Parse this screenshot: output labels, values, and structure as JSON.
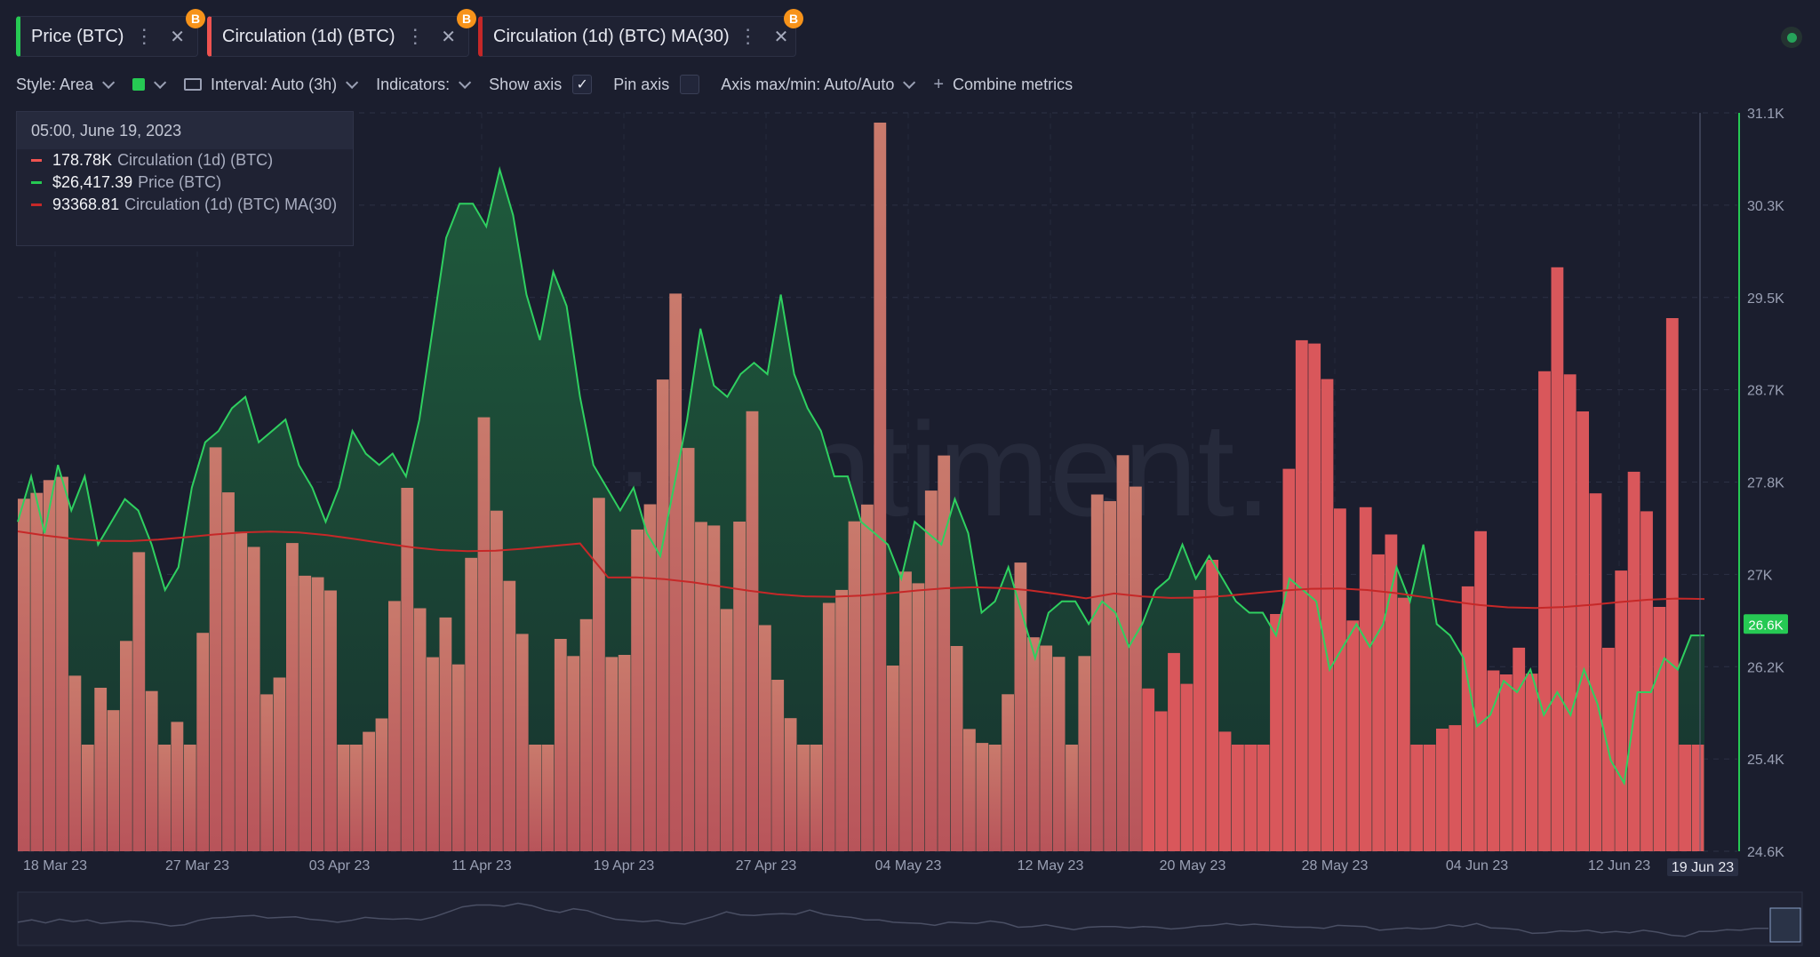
{
  "tabs": [
    {
      "label": "Price (BTC)",
      "color": "#26c953",
      "badge": "B"
    },
    {
      "label": "Circulation (1d) (BTC)",
      "color": "#ef5350",
      "badge": "B"
    },
    {
      "label": "Circulation (1d) (BTC) MA(30)",
      "color": "#c62828",
      "badge": "B"
    }
  ],
  "toolbar": {
    "style_label": "Style: Area",
    "interval_label": "Interval: Auto (3h)",
    "indicators_label": "Indicators:",
    "show_axis_label": "Show axis",
    "show_axis_checked": "✓",
    "pin_axis_label": "Pin axis",
    "axis_minmax_label": "Axis max/min: Auto/Auto",
    "combine_label": "Combine metrics"
  },
  "tooltip": {
    "date": "05:00, June 19, 2023",
    "rows": [
      {
        "value": "178.78K",
        "name": "Circulation (1d) (BTC)",
        "color": "#ef5350"
      },
      {
        "value": "$26,417.39",
        "name": "Price (BTC)",
        "color": "#26c953"
      },
      {
        "value": "93368.81",
        "name": "Circulation (1d) (BTC) MA(30)",
        "color": "#c62828"
      }
    ]
  },
  "watermark": "·santiment.",
  "chart_data": {
    "type": "bar",
    "x_ticks": [
      "18 Mar 23",
      "27 Mar 23",
      "03 Apr 23",
      "11 Apr 23",
      "19 Apr 23",
      "27 Apr 23",
      "04 May 23",
      "12 May 23",
      "20 May 23",
      "28 May 23",
      "04 Jun 23",
      "12 Jun 23"
    ],
    "x_highlight": "19 Jun 23",
    "y_price_ticks": [
      "31.1K",
      "30.3K",
      "29.5K",
      "28.7K",
      "27.8K",
      "27K",
      "26.2K",
      "25.4K",
      "24.6K"
    ],
    "y_price_range": [
      24600,
      31100
    ],
    "price_current_label": "26.6K",
    "price_current": 26600,
    "grid": true,
    "series": [
      {
        "name": "Price (BTC)",
        "style": "area",
        "color": "#26c953",
        "values": [
          27500,
          27900,
          27400,
          28000,
          27600,
          27900,
          27300,
          27500,
          27700,
          27600,
          27300,
          26900,
          27100,
          27800,
          28200,
          28300,
          28500,
          28600,
          28200,
          28300,
          28400,
          28000,
          27800,
          27500,
          27800,
          28300,
          28100,
          28000,
          28100,
          27900,
          28400,
          29200,
          30000,
          30300,
          30300,
          30100,
          30600,
          30200,
          29500,
          29100,
          29700,
          29400,
          28600,
          28000,
          27800,
          27600,
          27800,
          27400,
          27200,
          27800,
          28400,
          29200,
          28700,
          28600,
          28800,
          28900,
          28800,
          29500,
          28800,
          28500,
          28300,
          27900,
          27900,
          27500,
          27400,
          27300,
          27000,
          27500,
          27400,
          27300,
          27700,
          27400,
          26700,
          26800,
          27100,
          26700,
          26300,
          26700,
          26800,
          26800,
          26600,
          26800,
          26700,
          26400,
          26600,
          26900,
          27000,
          27300,
          27000,
          27200,
          27000,
          26800,
          26700,
          26700,
          26500,
          27000,
          26900,
          26800,
          26200,
          26400,
          26600,
          26400,
          26600,
          27100,
          26800,
          27300,
          26600,
          26500,
          26300,
          25700,
          25800,
          26100,
          26000,
          26200,
          25800,
          26000,
          25800,
          26200,
          25900,
          25400,
          25200,
          26000,
          26000,
          26300,
          26200,
          26500,
          26500
        ],
        "dates_range": [
          "2023-03-17",
          "2023-06-19"
        ]
      },
      {
        "name": "Circulation (1d) (BTC)",
        "style": "bar",
        "color": "#ef5350"
      },
      {
        "name": "Circulation (1d) (BTC) MA(30)",
        "style": "line",
        "color": "#c62828"
      }
    ]
  }
}
